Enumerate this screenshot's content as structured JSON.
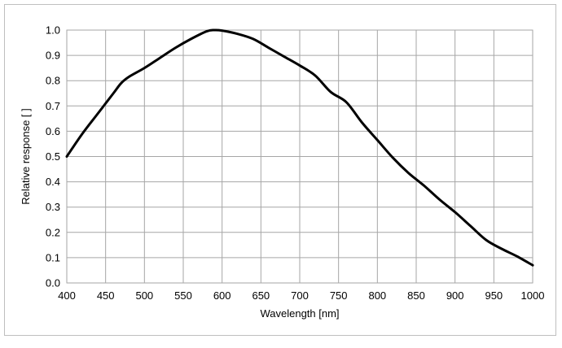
{
  "chart_data": {
    "type": "line",
    "title": "",
    "xlabel": "Wavelength [nm]",
    "ylabel": "Relative response [ ]",
    "xlim": [
      400,
      1000
    ],
    "ylim": [
      0.0,
      1.0
    ],
    "grid": true,
    "x_ticks": [
      "400",
      "450",
      "500",
      "550",
      "600",
      "650",
      "700",
      "750",
      "800",
      "850",
      "900",
      "950",
      "1000"
    ],
    "y_ticks": [
      "0.0",
      "0.1",
      "0.2",
      "0.3",
      "0.4",
      "0.5",
      "0.6",
      "0.7",
      "0.8",
      "0.9",
      "1.0"
    ],
    "series": [
      {
        "color": "#000000",
        "x": [
          400,
          420,
          440,
          460,
          470,
          480,
          500,
          520,
          540,
          560,
          580,
          590,
          600,
          620,
          640,
          660,
          680,
          700,
          720,
          740,
          760,
          780,
          800,
          820,
          840,
          860,
          880,
          900,
          920,
          940,
          960,
          980,
          1000
        ],
        "y": [
          0.5,
          0.59,
          0.67,
          0.75,
          0.79,
          0.815,
          0.85,
          0.89,
          0.93,
          0.965,
          0.995,
          1.0,
          0.998,
          0.985,
          0.965,
          0.93,
          0.895,
          0.86,
          0.82,
          0.755,
          0.715,
          0.635,
          0.565,
          0.495,
          0.435,
          0.385,
          0.33,
          0.28,
          0.225,
          0.17,
          0.135,
          0.105,
          0.07
        ]
      }
    ]
  }
}
